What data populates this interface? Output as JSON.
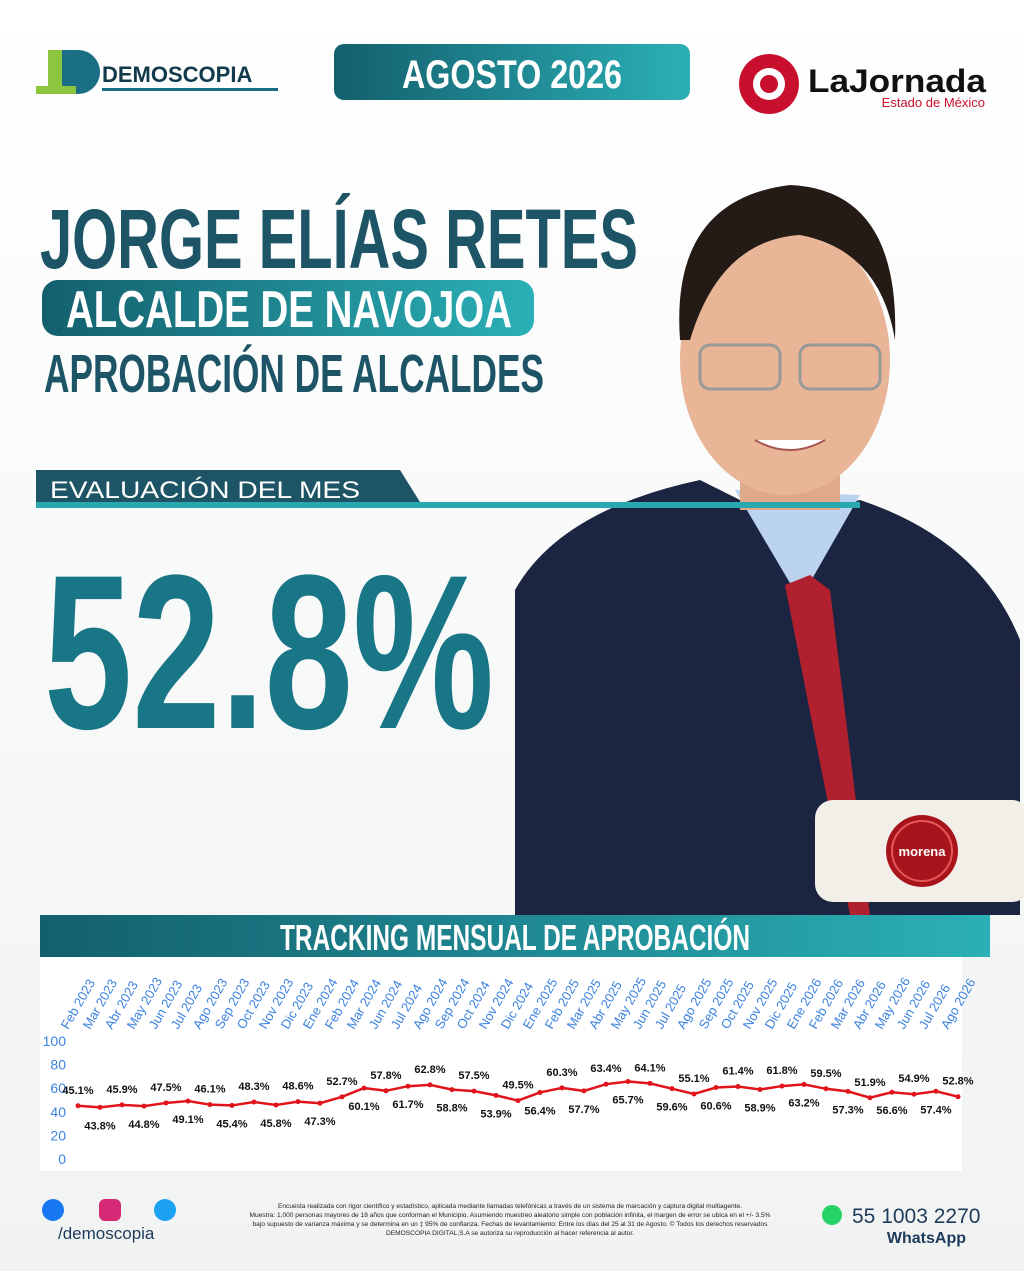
{
  "header": {
    "brand": "DEMOSCOPIA",
    "date": "AGOSTO 2026",
    "partner": "LaJornada",
    "partner_sub": "Estado de México"
  },
  "headline": {
    "name": "JORGE ELÍAS RETES",
    "role": "ALCALDE DE NAVOJOA",
    "subtitle": "APROBACIÓN DE ALCALDES",
    "evaluation_label": "EVALUACIÓN DEL MES",
    "evaluation_value": "52.8%",
    "party": "morena"
  },
  "chart_data": {
    "type": "line",
    "title": "TRACKING MENSUAL DE APROBACIÓN",
    "categories": [
      "Feb 2023",
      "Mar 2023",
      "Abr 2023",
      "May 2023",
      "Jun 2023",
      "Jul 2023",
      "Ago 2023",
      "Sep 2023",
      "Oct 2023",
      "Nov 2023",
      "Dic 2023",
      "Ene 2024",
      "Feb 2024",
      "Mar 2024",
      "Jun 2024",
      "Jul 2024",
      "Ago 2024",
      "Sep 2024",
      "Oct 2024",
      "Nov 2024",
      "Dic 2024",
      "Ene 2025",
      "Feb 2025",
      "Mar 2025",
      "Abr 2025",
      "May 2025",
      "Jun 2025",
      "Jul 2025",
      "Ago 2025",
      "Sep 2025",
      "Oct 2025",
      "Nov 2025",
      "Dic 2025",
      "Ene 2026",
      "Feb 2026",
      "Mar 2026",
      "Abr 2026",
      "May 2026",
      "Jun 2026",
      "Jul 2026",
      "Ago 2026"
    ],
    "values": [
      45.1,
      43.8,
      45.9,
      44.8,
      47.5,
      49.1,
      46.1,
      45.4,
      48.3,
      45.8,
      48.6,
      47.3,
      52.7,
      60.1,
      57.8,
      61.7,
      62.8,
      58.8,
      57.5,
      53.9,
      49.5,
      56.4,
      60.3,
      57.7,
      63.4,
      65.7,
      64.1,
      59.6,
      55.1,
      60.6,
      61.4,
      58.9,
      61.8,
      63.2,
      59.5,
      57.3,
      51.9,
      56.6,
      54.9,
      57.4,
      52.8
    ],
    "value_labels": [
      "45.1%",
      "43.8%",
      "45.9%",
      "44.8%",
      "47.5%",
      "49.1%",
      "46.1%",
      "45.4%",
      "48.3%",
      "45.8%",
      "48.6%",
      "47.3%",
      "52.7%",
      "60.1%",
      "57.8%",
      "61.7%",
      "62.8%",
      "58.8%",
      "57.5%",
      "53.9%",
      "49.5%",
      "56.4%",
      "60.3%",
      "57.7%",
      "63.4%",
      "65.7%",
      "64.1%",
      "59.6%",
      "55.1%",
      "60.6%",
      "61.4%",
      "58.9%",
      "61.8%",
      "63.2%",
      "59.5%",
      "57.3%",
      "51.9%",
      "56.6%",
      "54.9%",
      "57.4%",
      "52.8%"
    ],
    "color": "#e0141b",
    "ylim": [
      0,
      100
    ],
    "yticks": [
      0,
      20,
      40,
      60,
      80,
      100
    ],
    "grid": false
  },
  "footer": {
    "social": "/demoscopia",
    "disclaimer": [
      "Encuesta realizada con rigor científico y estadístico, aplicada mediante llamadas telefónicas a través de un sistema de marcación y captura digital multiagente.",
      "Muestra: 1,000 personas mayores de 18 años que conforman el Municipio. Asumiendo muestreo aleatorio simple con población infinita, el margen de error se ubica en el +/- 3.5%",
      "bajo supuesto de varianza máxima y se determina en un ‡ 95% de confianza. Fechas de levantamiento: Entre los días del 25 al 31 de Agosto. © Todos los derechos reservados",
      "DEMOSCOPIA DIGITAL,S.A se autoriza su reproducción al hacer referencia al autor."
    ],
    "phone": "55 1003 2270",
    "phone_label": "WhatsApp"
  }
}
